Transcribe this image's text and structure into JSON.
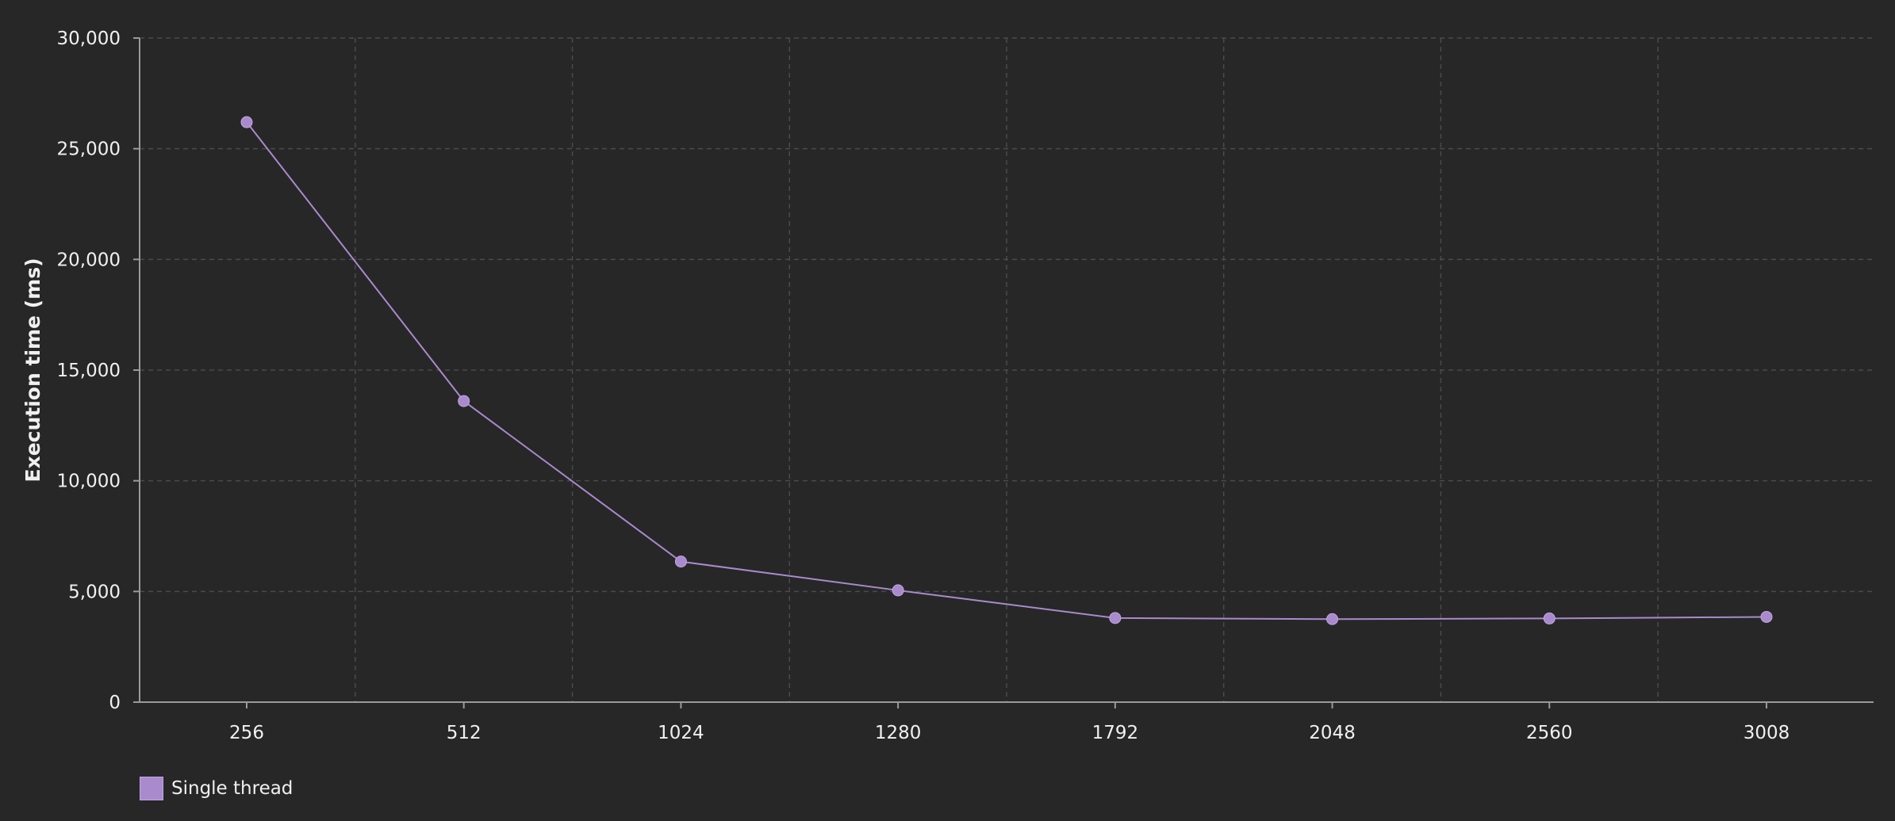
{
  "colors": {
    "background": "#272727",
    "series": "#a98acd",
    "axis": "#9a9a9a",
    "grid": "#4a4a4a",
    "text": "#f0f0f0"
  },
  "legend": {
    "position": "bottom-left",
    "label": "Single thread"
  },
  "chart_data": {
    "type": "line",
    "title": "",
    "xlabel": "",
    "ylabel": "Execution time (ms)",
    "categories": [
      "256",
      "512",
      "1024",
      "1280",
      "1792",
      "2048",
      "2560",
      "3008"
    ],
    "series": [
      {
        "name": "Single thread",
        "values": [
          26200,
          13600,
          6350,
          5050,
          3800,
          3750,
          3780,
          3850
        ]
      }
    ],
    "ylim": [
      0,
      30000
    ],
    "yticks": [
      0,
      5000,
      10000,
      15000,
      20000,
      25000,
      30000
    ],
    "ytick_labels": [
      "0",
      "5,000",
      "10,000",
      "15,000",
      "20,000",
      "25,000",
      "30,000"
    ],
    "grid": true,
    "marker": "circle"
  }
}
